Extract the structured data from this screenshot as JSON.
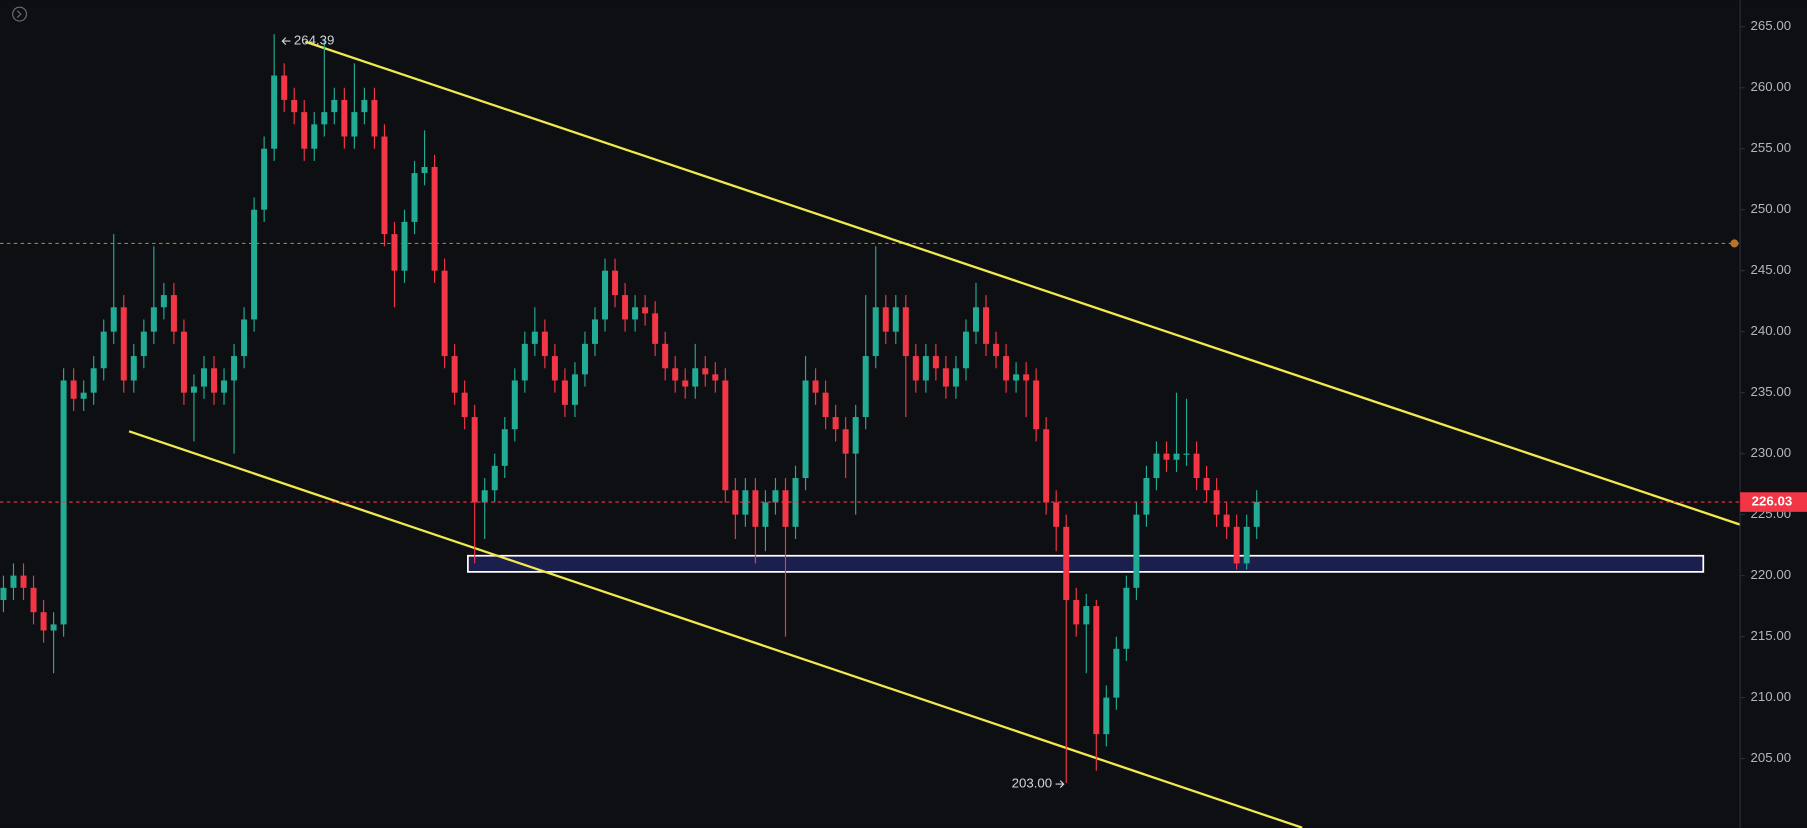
{
  "chart_data": {
    "type": "candlestick",
    "up_color": "#22ab94",
    "down_color": "#f23645",
    "grid": false,
    "ylim": [
      199.33,
      267.17
    ],
    "yticks": [
      {
        "value": 205,
        "label": "205.00"
      },
      {
        "value": 210,
        "label": "210.00"
      },
      {
        "value": 215,
        "label": "215.00"
      },
      {
        "value": 220,
        "label": "220.00"
      },
      {
        "value": 225,
        "label": "225.00"
      },
      {
        "value": 230,
        "label": "230.00"
      },
      {
        "value": 235,
        "label": "235.00"
      },
      {
        "value": 240,
        "label": "240.00"
      },
      {
        "value": 245,
        "label": "245.00"
      },
      {
        "value": 250,
        "label": "250.00"
      },
      {
        "value": 255,
        "label": "255.00"
      },
      {
        "value": 260,
        "label": "260.00"
      },
      {
        "value": 265,
        "label": "265.00"
      }
    ],
    "open": [
      218,
      219,
      220,
      219,
      217,
      215.5,
      216,
      236,
      234.5,
      235,
      237,
      240,
      242,
      236,
      238,
      240,
      242,
      243,
      240,
      235,
      235.5,
      237,
      235,
      236,
      238,
      241,
      250,
      255,
      261,
      259,
      258,
      255,
      257,
      258,
      259,
      256,
      258,
      259,
      256,
      248,
      245,
      249,
      253,
      253.5,
      245,
      238,
      235,
      233,
      226,
      227,
      229,
      232,
      236,
      239,
      240,
      238,
      236,
      234,
      236.5,
      239,
      241,
      245,
      243,
      241,
      242,
      241.5,
      239,
      237,
      236,
      235.5,
      237,
      236.5,
      236,
      227,
      225,
      227,
      224,
      226,
      227,
      224,
      228,
      236,
      235,
      233,
      232,
      230,
      233,
      238,
      242,
      240,
      242,
      238,
      236,
      238,
      237,
      235.5,
      237,
      240,
      242,
      239,
      238,
      236,
      236.5,
      236,
      232,
      226,
      224,
      218,
      216,
      217.5,
      207,
      210,
      214,
      219,
      225,
      228,
      230,
      229.5,
      230,
      230,
      228,
      227,
      225,
      224,
      221,
      224
    ],
    "high": [
      220,
      221,
      221,
      220,
      218,
      217,
      237,
      237,
      236,
      238,
      241,
      248,
      243,
      239,
      241,
      247,
      244,
      244,
      241,
      236.5,
      238,
      238,
      237,
      239,
      242,
      251,
      256,
      264.39,
      262,
      260,
      259,
      258,
      264,
      260,
      260,
      262,
      260,
      260,
      257,
      249,
      250,
      254,
      256.5,
      254.5,
      246,
      239,
      236,
      234,
      228,
      230,
      233,
      237,
      240,
      242,
      241,
      239,
      237,
      237.5,
      240,
      242,
      246,
      246,
      244,
      243,
      243,
      242.5,
      240,
      238,
      237,
      239,
      238,
      237.5,
      237,
      228,
      228,
      228,
      227,
      228,
      228,
      229,
      238,
      237,
      236,
      234,
      233,
      234,
      243,
      247,
      243,
      243,
      243,
      239,
      239,
      239,
      238,
      238,
      241,
      244,
      243,
      240,
      239,
      237.5,
      237.5,
      237,
      233,
      227,
      225,
      219,
      218.5,
      218,
      211,
      215,
      220,
      226,
      229,
      231,
      231,
      235,
      234.5,
      231,
      229,
      228,
      226,
      225,
      225,
      227
    ],
    "low": [
      217,
      218,
      218,
      216,
      214.5,
      212,
      215,
      233.5,
      233.5,
      234,
      236,
      239,
      235,
      235,
      237,
      239,
      241,
      239,
      234,
      231,
      234.5,
      234,
      234,
      230,
      237,
      240,
      249,
      254,
      258,
      257,
      254,
      254,
      256,
      257,
      255,
      255,
      257,
      255,
      247,
      242,
      244,
      248,
      252,
      244,
      237,
      234,
      232,
      221,
      223,
      226,
      228,
      231,
      235,
      238,
      237,
      235,
      233,
      233,
      235.5,
      238,
      240,
      242,
      240,
      240,
      240.5,
      238,
      236,
      235,
      234.5,
      234.5,
      235.5,
      235,
      226,
      223,
      224,
      221,
      222,
      225,
      215,
      223,
      227,
      234,
      232,
      231,
      228,
      225,
      232,
      237,
      239,
      239,
      233,
      235,
      235,
      236,
      234.5,
      234.5,
      236,
      239,
      238,
      237,
      235,
      235,
      233,
      231,
      225,
      222,
      203,
      215,
      212,
      204,
      206,
      209,
      213,
      218,
      224,
      227,
      228.5,
      228.5,
      229,
      227,
      226,
      224,
      223,
      220.5,
      220.5,
      223
    ],
    "close": [
      219,
      220,
      219,
      217,
      215.5,
      216,
      236,
      234.5,
      235,
      237,
      240,
      242,
      236,
      238,
      240,
      242,
      243,
      240,
      235,
      235.5,
      237,
      235,
      236,
      238,
      241,
      250,
      255,
      261,
      259,
      258,
      255,
      257,
      258,
      259,
      256,
      258,
      259,
      256,
      248,
      245,
      249,
      253,
      253.5,
      245,
      238,
      235,
      233,
      226,
      227,
      229,
      232,
      236,
      239,
      240,
      238,
      236,
      234,
      236.5,
      239,
      241,
      245,
      243,
      241,
      242,
      241.5,
      239,
      237,
      236,
      235.5,
      237,
      236.5,
      236,
      227,
      225,
      227,
      224,
      226,
      227,
      224,
      228,
      236,
      235,
      233,
      232,
      230,
      233,
      238,
      242,
      240,
      242,
      238,
      236,
      238,
      237,
      235.5,
      237,
      240,
      242,
      239,
      238,
      236,
      236.5,
      236,
      232,
      226,
      224,
      218,
      216,
      217.5,
      207,
      210,
      214,
      219,
      225,
      228,
      230,
      229.5,
      230,
      230,
      228,
      227,
      225,
      224,
      221,
      224,
      226.03
    ],
    "annotations": [
      {
        "value": 264.39,
        "label": "264.39"
      },
      {
        "value": 203,
        "label": "203.00"
      }
    ],
    "last_price": {
      "value": 226.03,
      "label": "226.03"
    }
  }
}
